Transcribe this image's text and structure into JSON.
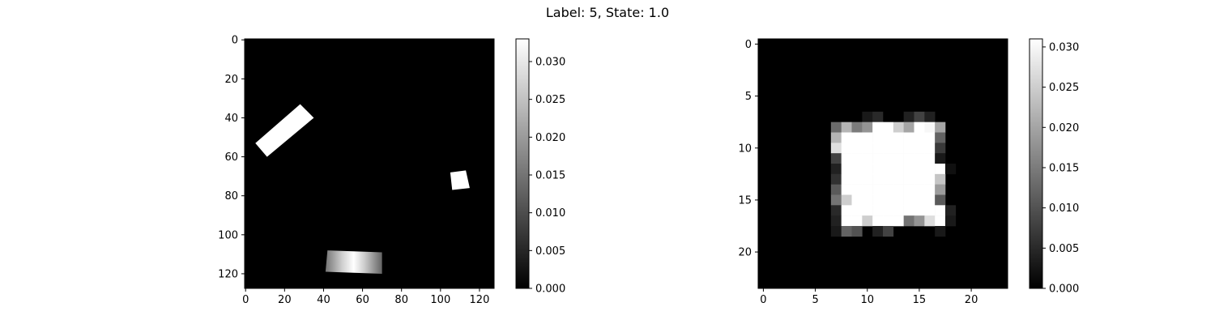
{
  "figure": {
    "title": "Label: 5, State: 1.0"
  },
  "chart_data": [
    {
      "type": "heatmap",
      "title": "",
      "xlabel": "",
      "ylabel": "",
      "colormap": "gray",
      "xlim": [
        -0.5,
        127.5
      ],
      "ylim": [
        127.5,
        -0.5
      ],
      "x_ticks": [
        0,
        20,
        40,
        60,
        80,
        100,
        120
      ],
      "y_ticks": [
        0,
        20,
        40,
        60,
        80,
        100,
        120
      ],
      "colorbar": {
        "min": 0.0,
        "max": 0.033,
        "ticks": [
          "0.000",
          "0.005",
          "0.010",
          "0.015",
          "0.020",
          "0.025",
          "0.030"
        ]
      },
      "background_value": 0.0,
      "shapes": [
        {
          "kind": "rotated-rect",
          "value": 0.033,
          "corners": [
            [
              28,
              33
            ],
            [
              35,
              40
            ],
            [
              11,
              60
            ],
            [
              5,
              53
            ]
          ]
        },
        {
          "kind": "rotated-rect",
          "value": 0.033,
          "corners": [
            [
              105,
              68
            ],
            [
              113,
              67
            ],
            [
              115,
              76
            ],
            [
              106,
              77
            ]
          ]
        },
        {
          "kind": "gradient-rect",
          "corners": [
            [
              42,
              108
            ],
            [
              70,
              109
            ],
            [
              70,
              120
            ],
            [
              41,
              119
            ]
          ],
          "profile": [
            [
              0,
              0.015
            ],
            [
              0.3,
              0.027
            ],
            [
              0.5,
              0.033
            ],
            [
              0.7,
              0.026
            ],
            [
              1,
              0.013
            ]
          ]
        }
      ]
    },
    {
      "type": "heatmap",
      "title": "",
      "xlabel": "",
      "ylabel": "",
      "colormap": "gray",
      "xlim": [
        -0.5,
        23.5
      ],
      "ylim": [
        23.5,
        -0.5
      ],
      "x_ticks": [
        0,
        5,
        10,
        15,
        20
      ],
      "y_ticks": [
        0,
        5,
        10,
        15,
        20
      ],
      "colorbar": {
        "min": 0.0,
        "max": 0.031,
        "ticks": [
          "0.000",
          "0.005",
          "0.010",
          "0.015",
          "0.020",
          "0.025",
          "0.030"
        ]
      },
      "cells": [
        [
          7,
          10,
          0.003
        ],
        [
          7,
          11,
          0.005
        ],
        [
          7,
          14,
          0.004
        ],
        [
          7,
          15,
          0.008
        ],
        [
          7,
          16,
          0.004
        ],
        [
          8,
          7,
          0.013
        ],
        [
          8,
          8,
          0.022
        ],
        [
          8,
          9,
          0.015
        ],
        [
          8,
          10,
          0.018
        ],
        [
          8,
          11,
          0.031
        ],
        [
          8,
          12,
          0.031
        ],
        [
          8,
          13,
          0.025
        ],
        [
          8,
          14,
          0.02
        ],
        [
          8,
          15,
          0.031
        ],
        [
          8,
          16,
          0.03
        ],
        [
          8,
          17,
          0.02
        ],
        [
          9,
          7,
          0.022
        ],
        [
          9,
          8,
          0.031
        ],
        [
          9,
          9,
          0.031
        ],
        [
          9,
          10,
          0.031
        ],
        [
          9,
          11,
          0.031
        ],
        [
          9,
          12,
          0.031
        ],
        [
          9,
          13,
          0.031
        ],
        [
          9,
          14,
          0.031
        ],
        [
          9,
          15,
          0.031
        ],
        [
          9,
          16,
          0.031
        ],
        [
          9,
          17,
          0.012
        ],
        [
          10,
          7,
          0.027
        ],
        [
          10,
          8,
          0.031
        ],
        [
          10,
          9,
          0.031
        ],
        [
          10,
          10,
          0.031
        ],
        [
          10,
          11,
          0.031
        ],
        [
          10,
          12,
          0.031
        ],
        [
          10,
          13,
          0.031
        ],
        [
          10,
          14,
          0.031
        ],
        [
          10,
          15,
          0.031
        ],
        [
          10,
          16,
          0.031
        ],
        [
          10,
          17,
          0.007
        ],
        [
          11,
          7,
          0.008
        ],
        [
          11,
          8,
          0.031
        ],
        [
          11,
          9,
          0.031
        ],
        [
          11,
          10,
          0.031
        ],
        [
          11,
          11,
          0.031
        ],
        [
          11,
          12,
          0.031
        ],
        [
          11,
          13,
          0.031
        ],
        [
          11,
          14,
          0.031
        ],
        [
          11,
          15,
          0.031
        ],
        [
          11,
          16,
          0.031
        ],
        [
          11,
          17,
          0.003
        ],
        [
          12,
          7,
          0.004
        ],
        [
          12,
          8,
          0.031
        ],
        [
          12,
          9,
          0.031
        ],
        [
          12,
          10,
          0.031
        ],
        [
          12,
          11,
          0.031
        ],
        [
          12,
          12,
          0.031
        ],
        [
          12,
          13,
          0.031
        ],
        [
          12,
          14,
          0.031
        ],
        [
          12,
          15,
          0.031
        ],
        [
          12,
          16,
          0.031
        ],
        [
          12,
          17,
          0.031
        ],
        [
          12,
          18,
          0.002
        ],
        [
          13,
          7,
          0.006
        ],
        [
          13,
          8,
          0.031
        ],
        [
          13,
          9,
          0.031
        ],
        [
          13,
          10,
          0.031
        ],
        [
          13,
          11,
          0.031
        ],
        [
          13,
          12,
          0.031
        ],
        [
          13,
          13,
          0.031
        ],
        [
          13,
          14,
          0.031
        ],
        [
          13,
          15,
          0.031
        ],
        [
          13,
          16,
          0.031
        ],
        [
          13,
          17,
          0.024
        ],
        [
          14,
          7,
          0.011
        ],
        [
          14,
          8,
          0.031
        ],
        [
          14,
          9,
          0.031
        ],
        [
          14,
          10,
          0.031
        ],
        [
          14,
          11,
          0.031
        ],
        [
          14,
          12,
          0.031
        ],
        [
          14,
          13,
          0.031
        ],
        [
          14,
          14,
          0.031
        ],
        [
          14,
          15,
          0.031
        ],
        [
          14,
          16,
          0.031
        ],
        [
          14,
          17,
          0.019
        ],
        [
          15,
          7,
          0.014
        ],
        [
          15,
          8,
          0.025
        ],
        [
          15,
          9,
          0.031
        ],
        [
          15,
          10,
          0.031
        ],
        [
          15,
          11,
          0.031
        ],
        [
          15,
          12,
          0.031
        ],
        [
          15,
          13,
          0.031
        ],
        [
          15,
          14,
          0.031
        ],
        [
          15,
          15,
          0.031
        ],
        [
          15,
          16,
          0.031
        ],
        [
          15,
          17,
          0.011
        ],
        [
          16,
          7,
          0.005
        ],
        [
          16,
          8,
          0.031
        ],
        [
          16,
          9,
          0.031
        ],
        [
          16,
          10,
          0.031
        ],
        [
          16,
          11,
          0.031
        ],
        [
          16,
          12,
          0.031
        ],
        [
          16,
          13,
          0.031
        ],
        [
          16,
          14,
          0.031
        ],
        [
          16,
          15,
          0.031
        ],
        [
          16,
          16,
          0.031
        ],
        [
          16,
          17,
          0.031
        ],
        [
          16,
          18,
          0.004
        ],
        [
          17,
          7,
          0.004
        ],
        [
          17,
          8,
          0.031
        ],
        [
          17,
          9,
          0.031
        ],
        [
          17,
          10,
          0.025
        ],
        [
          17,
          11,
          0.031
        ],
        [
          17,
          12,
          0.031
        ],
        [
          17,
          13,
          0.031
        ],
        [
          17,
          14,
          0.014
        ],
        [
          17,
          15,
          0.018
        ],
        [
          17,
          16,
          0.027
        ],
        [
          17,
          17,
          0.031
        ],
        [
          17,
          18,
          0.003
        ],
        [
          18,
          7,
          0.003
        ],
        [
          18,
          8,
          0.012
        ],
        [
          18,
          9,
          0.01
        ],
        [
          18,
          11,
          0.004
        ],
        [
          18,
          12,
          0.008
        ],
        [
          18,
          17,
          0.003
        ]
      ]
    }
  ]
}
